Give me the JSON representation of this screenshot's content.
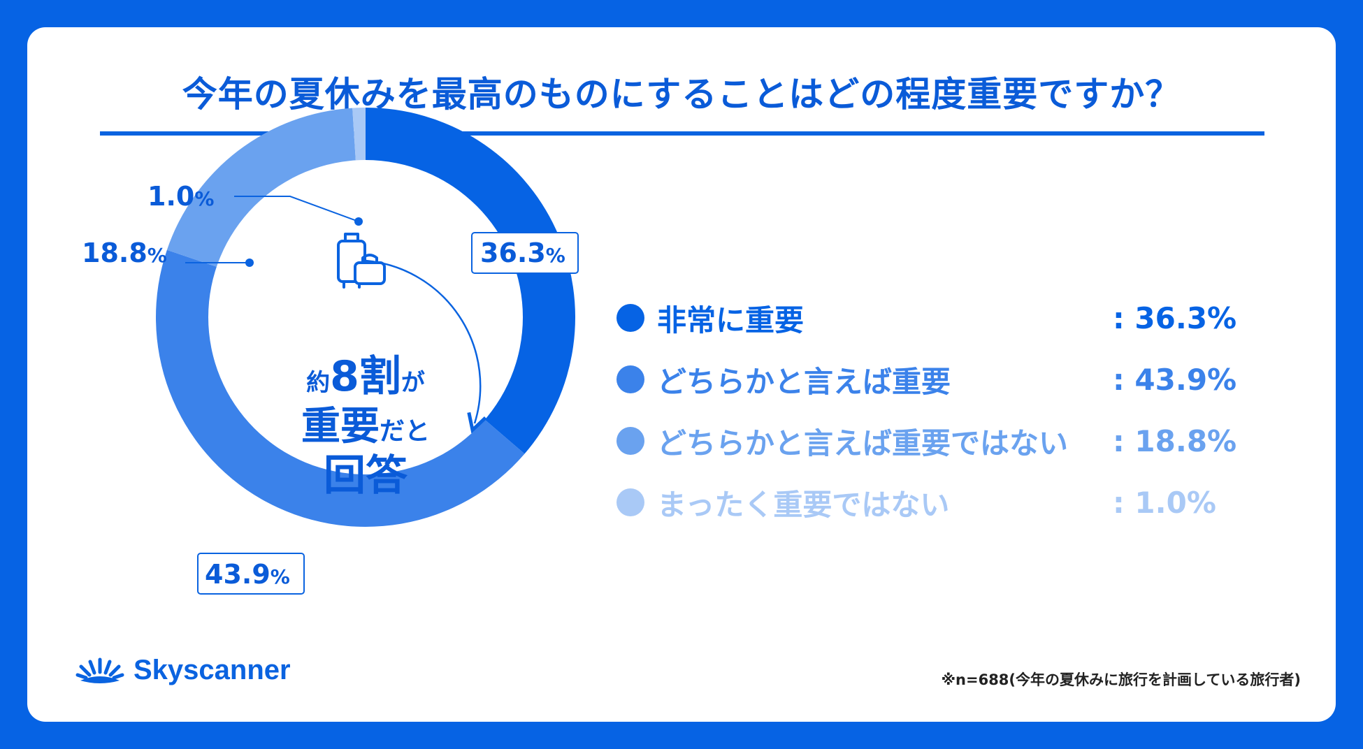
{
  "title": "今年の夏休みを最高のものにすることはどの程度重要ですか？",
  "chart_data": {
    "type": "pie",
    "slices": [
      {
        "label": "非常に重要",
        "value": 36.3,
        "value_text": ": 36.3%",
        "callout": "36.3",
        "color": "#0663e4"
      },
      {
        "label": "どちらかと言えば重要",
        "value": 43.9,
        "value_text": ": 43.9%",
        "callout": "43.9",
        "color": "#3b82ea"
      },
      {
        "label": "どちらかと言えば重要ではない",
        "value": 18.8,
        "value_text": ": 18.8%",
        "callout": "18.8",
        "color": "#6aa2ef"
      },
      {
        "label": "まったく重要ではない",
        "value": 1.0,
        "value_text": ": 1.0%",
        "callout": "1.0",
        "color": "#a9c9f6"
      }
    ],
    "percent_sign": "%"
  },
  "center": {
    "line1_a": "約",
    "line1_b": "8割",
    "line1_c": "が",
    "line2_a": "重要",
    "line2_b": "だと",
    "line3": "回答",
    "icon": "luggage-icon"
  },
  "logo": {
    "text": "Skyscanner",
    "icon": "sunrise-icon"
  },
  "footnote": "※n=688(今年の夏休みに旅行を計画している旅行者)"
}
